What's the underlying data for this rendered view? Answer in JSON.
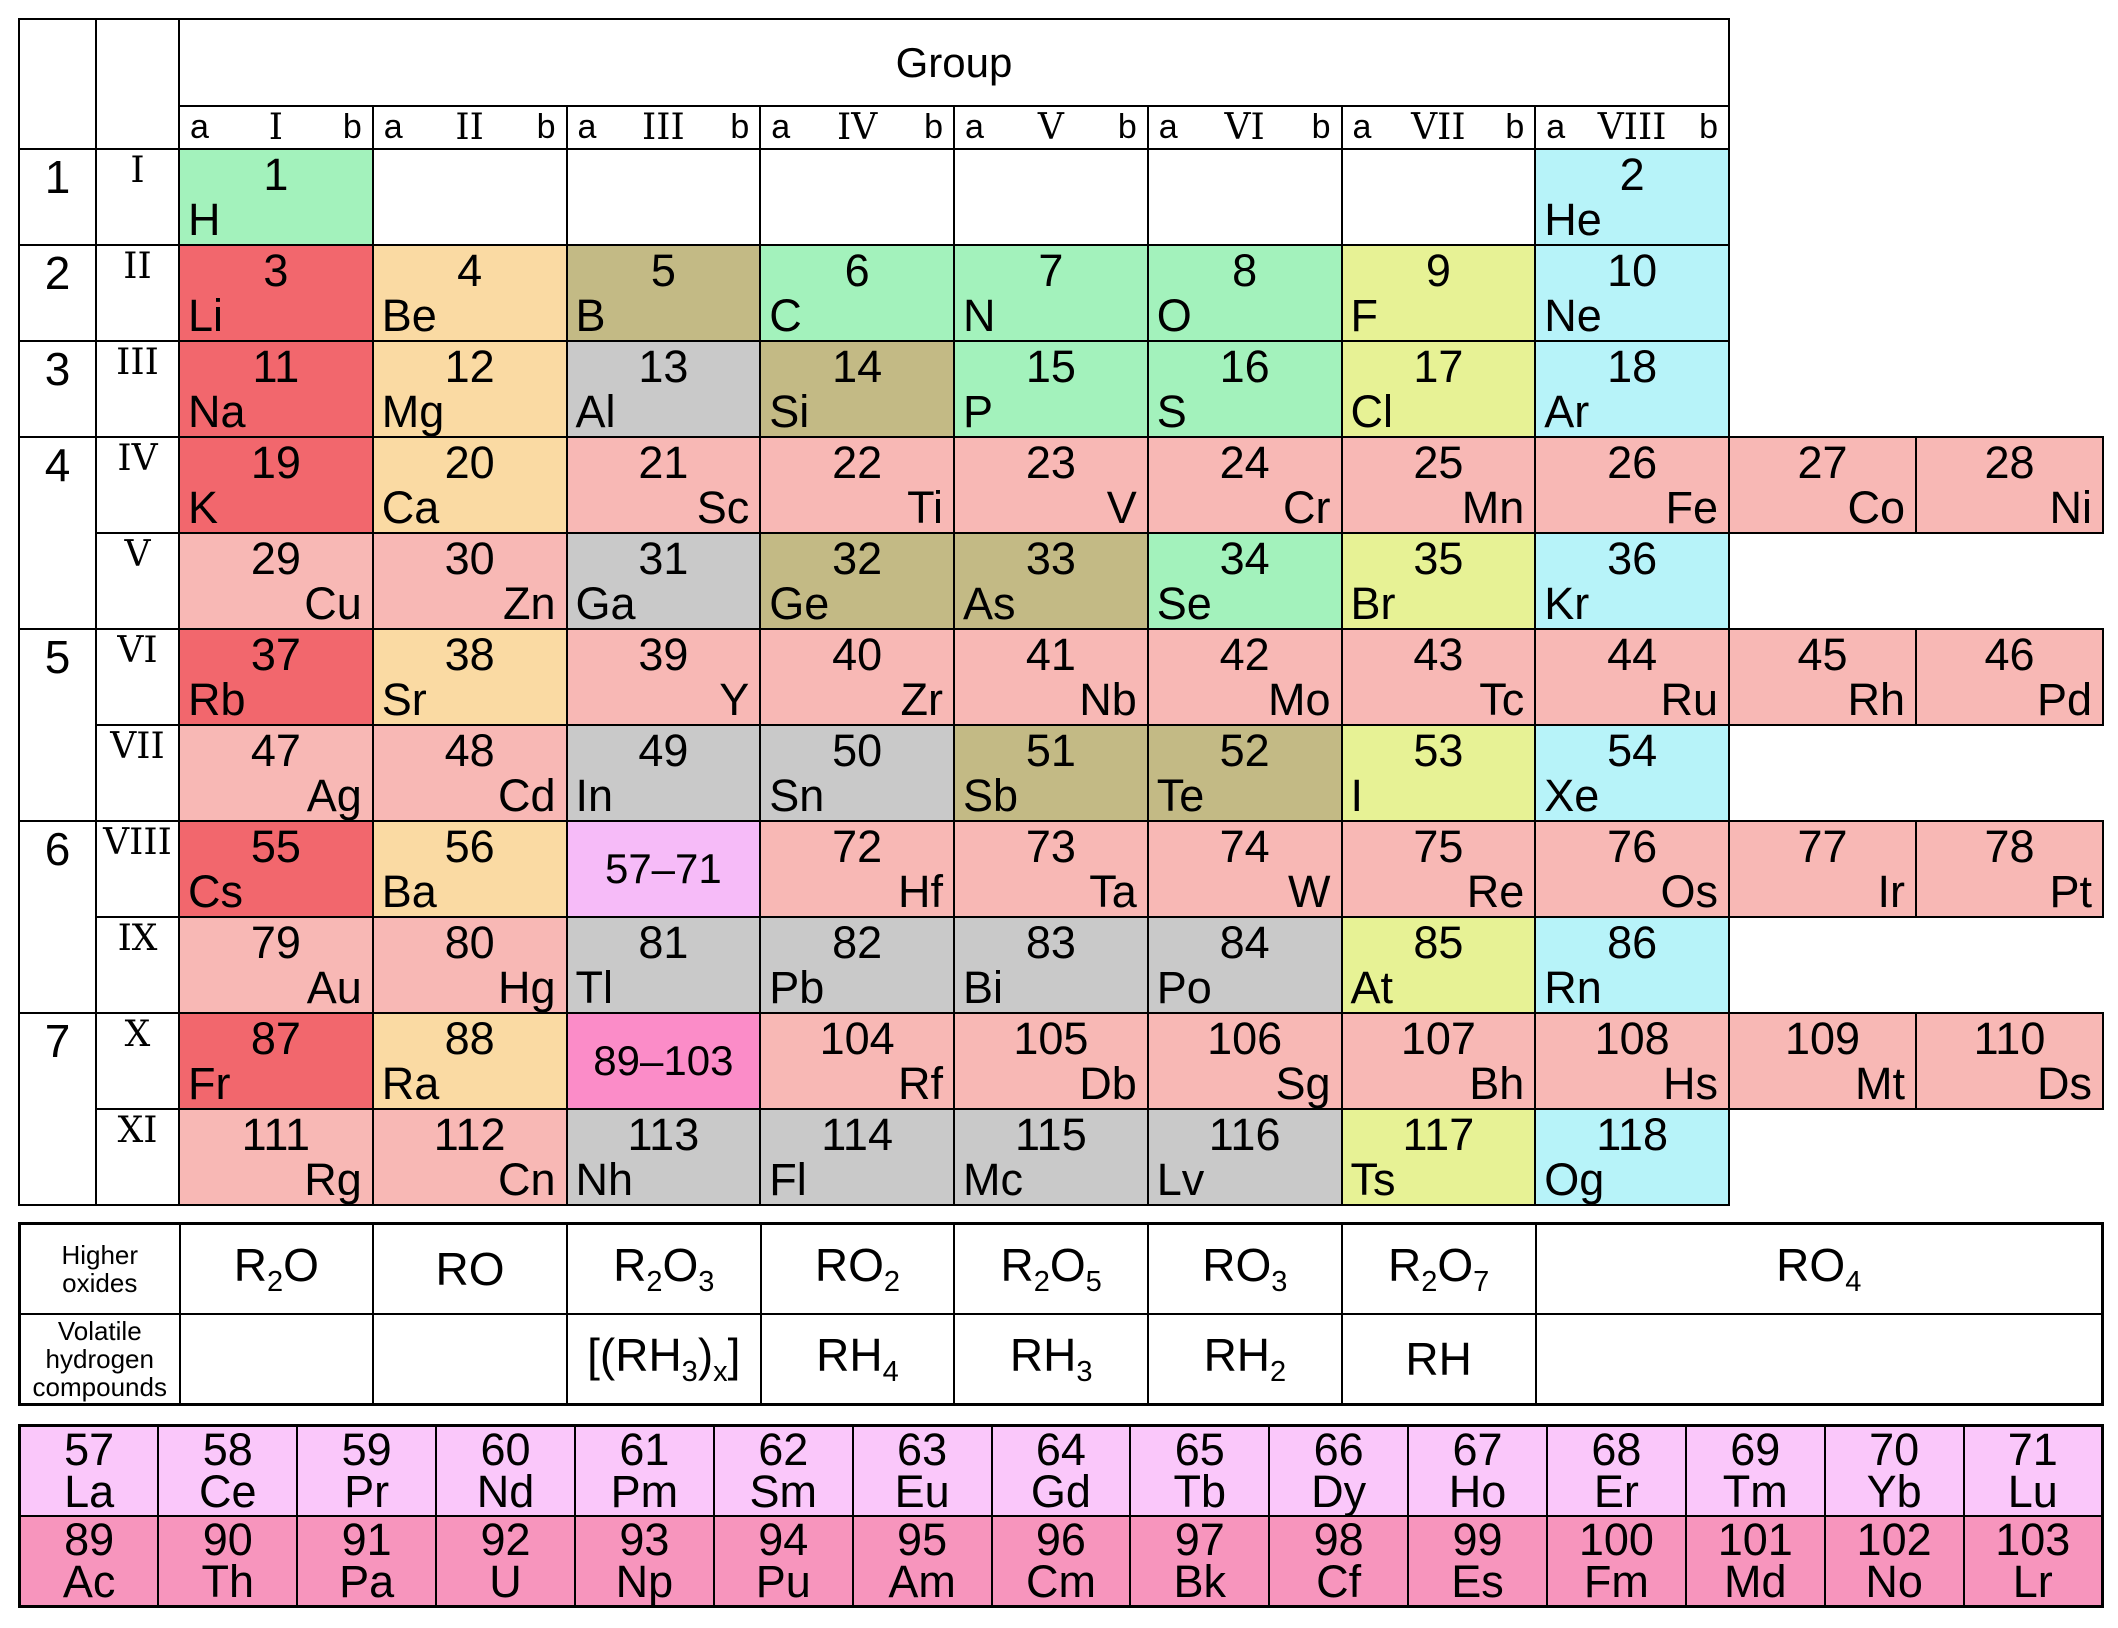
{
  "header": {
    "group_title": "Group",
    "sub_left": "a",
    "sub_right": "b",
    "groups": [
      "I",
      "II",
      "III",
      "IV",
      "V",
      "VI",
      "VII",
      "VIII"
    ]
  },
  "periods": [
    {
      "number": "1",
      "rows": [
        "I"
      ]
    },
    {
      "number": "2",
      "rows": [
        "II"
      ]
    },
    {
      "number": "3",
      "rows": [
        "III"
      ]
    },
    {
      "number": "4",
      "rows": [
        "IV",
        "V"
      ]
    },
    {
      "number": "5",
      "rows": [
        "VI",
        "VII"
      ]
    },
    {
      "number": "6",
      "rows": [
        "VIII",
        "IX"
      ]
    },
    {
      "number": "7",
      "rows": [
        "X",
        "XI"
      ]
    }
  ],
  "colors": {
    "alkali": "#F2676D",
    "alkaline": "#FADAA3",
    "transition": "#F8B8B5",
    "post_transition": "#C9C9C9",
    "metalloid": "#C3BA85",
    "nonmetal": "#A3F2BC",
    "halogen": "#E7F295",
    "noble": "#B7F3F9",
    "lanthanide_ref": "#F6BBF8",
    "actinide_ref": "#FB8CC8",
    "lanthanide_row": "#FAC7FA",
    "actinide_row": "#F795BD",
    "border": "#000000",
    "background": "#FFFFFF"
  },
  "cells": [
    {
      "r": 0,
      "g": 0,
      "number": "1",
      "symbol": "H",
      "align": "left",
      "cat": "nonmetal"
    },
    {
      "r": 0,
      "g": 7,
      "number": "2",
      "symbol": "He",
      "align": "left",
      "cat": "noble"
    },
    {
      "r": 1,
      "g": 0,
      "number": "3",
      "symbol": "Li",
      "align": "left",
      "cat": "alkali"
    },
    {
      "r": 1,
      "g": 1,
      "number": "4",
      "symbol": "Be",
      "align": "left",
      "cat": "alkaline"
    },
    {
      "r": 1,
      "g": 2,
      "number": "5",
      "symbol": "B",
      "align": "left",
      "cat": "metalloid"
    },
    {
      "r": 1,
      "g": 3,
      "number": "6",
      "symbol": "C",
      "align": "left",
      "cat": "nonmetal"
    },
    {
      "r": 1,
      "g": 4,
      "number": "7",
      "symbol": "N",
      "align": "left",
      "cat": "nonmetal"
    },
    {
      "r": 1,
      "g": 5,
      "number": "8",
      "symbol": "O",
      "align": "left",
      "cat": "nonmetal"
    },
    {
      "r": 1,
      "g": 6,
      "number": "9",
      "symbol": "F",
      "align": "left",
      "cat": "halogen"
    },
    {
      "r": 1,
      "g": 7,
      "number": "10",
      "symbol": "Ne",
      "align": "left",
      "cat": "noble"
    },
    {
      "r": 2,
      "g": 0,
      "number": "11",
      "symbol": "Na",
      "align": "left",
      "cat": "alkali"
    },
    {
      "r": 2,
      "g": 1,
      "number": "12",
      "symbol": "Mg",
      "align": "left",
      "cat": "alkaline"
    },
    {
      "r": 2,
      "g": 2,
      "number": "13",
      "symbol": "Al",
      "align": "left",
      "cat": "post_transition"
    },
    {
      "r": 2,
      "g": 3,
      "number": "14",
      "symbol": "Si",
      "align": "left",
      "cat": "metalloid"
    },
    {
      "r": 2,
      "g": 4,
      "number": "15",
      "symbol": "P",
      "align": "left",
      "cat": "nonmetal"
    },
    {
      "r": 2,
      "g": 5,
      "number": "16",
      "symbol": "S",
      "align": "left",
      "cat": "nonmetal"
    },
    {
      "r": 2,
      "g": 6,
      "number": "17",
      "symbol": "Cl",
      "align": "left",
      "cat": "halogen"
    },
    {
      "r": 2,
      "g": 7,
      "number": "18",
      "symbol": "Ar",
      "align": "left",
      "cat": "noble"
    },
    {
      "r": 3,
      "g": 0,
      "number": "19",
      "symbol": "K",
      "align": "left",
      "cat": "alkali"
    },
    {
      "r": 3,
      "g": 1,
      "number": "20",
      "symbol": "Ca",
      "align": "left",
      "cat": "alkaline"
    },
    {
      "r": 3,
      "g": 2,
      "number": "21",
      "symbol": "Sc",
      "align": "right",
      "cat": "transition"
    },
    {
      "r": 3,
      "g": 3,
      "number": "22",
      "symbol": "Ti",
      "align": "right",
      "cat": "transition"
    },
    {
      "r": 3,
      "g": 4,
      "number": "23",
      "symbol": "V",
      "align": "right",
      "cat": "transition"
    },
    {
      "r": 3,
      "g": 5,
      "number": "24",
      "symbol": "Cr",
      "align": "right",
      "cat": "transition"
    },
    {
      "r": 3,
      "g": 6,
      "number": "25",
      "symbol": "Mn",
      "align": "right",
      "cat": "transition"
    },
    {
      "r": 3,
      "g": 7,
      "number": "26",
      "symbol": "Fe",
      "align": "right",
      "cat": "transition"
    },
    {
      "r": 3,
      "g": 8,
      "number": "27",
      "symbol": "Co",
      "align": "right",
      "cat": "transition"
    },
    {
      "r": 3,
      "g": 9,
      "number": "28",
      "symbol": "Ni",
      "align": "right",
      "cat": "transition"
    },
    {
      "r": 4,
      "g": 0,
      "number": "29",
      "symbol": "Cu",
      "align": "right",
      "cat": "transition"
    },
    {
      "r": 4,
      "g": 1,
      "number": "30",
      "symbol": "Zn",
      "align": "right",
      "cat": "transition"
    },
    {
      "r": 4,
      "g": 2,
      "number": "31",
      "symbol": "Ga",
      "align": "left",
      "cat": "post_transition"
    },
    {
      "r": 4,
      "g": 3,
      "number": "32",
      "symbol": "Ge",
      "align": "left",
      "cat": "metalloid"
    },
    {
      "r": 4,
      "g": 4,
      "number": "33",
      "symbol": "As",
      "align": "left",
      "cat": "metalloid"
    },
    {
      "r": 4,
      "g": 5,
      "number": "34",
      "symbol": "Se",
      "align": "left",
      "cat": "nonmetal"
    },
    {
      "r": 4,
      "g": 6,
      "number": "35",
      "symbol": "Br",
      "align": "left",
      "cat": "halogen"
    },
    {
      "r": 4,
      "g": 7,
      "number": "36",
      "symbol": "Kr",
      "align": "left",
      "cat": "noble"
    },
    {
      "r": 5,
      "g": 0,
      "number": "37",
      "symbol": "Rb",
      "align": "left",
      "cat": "alkali"
    },
    {
      "r": 5,
      "g": 1,
      "number": "38",
      "symbol": "Sr",
      "align": "left",
      "cat": "alkaline"
    },
    {
      "r": 5,
      "g": 2,
      "number": "39",
      "symbol": "Y",
      "align": "right",
      "cat": "transition"
    },
    {
      "r": 5,
      "g": 3,
      "number": "40",
      "symbol": "Zr",
      "align": "right",
      "cat": "transition"
    },
    {
      "r": 5,
      "g": 4,
      "number": "41",
      "symbol": "Nb",
      "align": "right",
      "cat": "transition"
    },
    {
      "r": 5,
      "g": 5,
      "number": "42",
      "symbol": "Mo",
      "align": "right",
      "cat": "transition"
    },
    {
      "r": 5,
      "g": 6,
      "number": "43",
      "symbol": "Tc",
      "align": "right",
      "cat": "transition"
    },
    {
      "r": 5,
      "g": 7,
      "number": "44",
      "symbol": "Ru",
      "align": "right",
      "cat": "transition"
    },
    {
      "r": 5,
      "g": 8,
      "number": "45",
      "symbol": "Rh",
      "align": "right",
      "cat": "transition"
    },
    {
      "r": 5,
      "g": 9,
      "number": "46",
      "symbol": "Pd",
      "align": "right",
      "cat": "transition"
    },
    {
      "r": 6,
      "g": 0,
      "number": "47",
      "symbol": "Ag",
      "align": "right",
      "cat": "transition"
    },
    {
      "r": 6,
      "g": 1,
      "number": "48",
      "symbol": "Cd",
      "align": "right",
      "cat": "transition"
    },
    {
      "r": 6,
      "g": 2,
      "number": "49",
      "symbol": "In",
      "align": "left",
      "cat": "post_transition"
    },
    {
      "r": 6,
      "g": 3,
      "number": "50",
      "symbol": "Sn",
      "align": "left",
      "cat": "post_transition"
    },
    {
      "r": 6,
      "g": 4,
      "number": "51",
      "symbol": "Sb",
      "align": "left",
      "cat": "metalloid"
    },
    {
      "r": 6,
      "g": 5,
      "number": "52",
      "symbol": "Te",
      "align": "left",
      "cat": "metalloid"
    },
    {
      "r": 6,
      "g": 6,
      "number": "53",
      "symbol": "I",
      "align": "left",
      "cat": "halogen"
    },
    {
      "r": 6,
      "g": 7,
      "number": "54",
      "symbol": "Xe",
      "align": "left",
      "cat": "noble"
    },
    {
      "r": 7,
      "g": 0,
      "number": "55",
      "symbol": "Cs",
      "align": "left",
      "cat": "alkali"
    },
    {
      "r": 7,
      "g": 1,
      "number": "56",
      "symbol": "Ba",
      "align": "left",
      "cat": "alkaline"
    },
    {
      "r": 7,
      "g": 2,
      "label": "57–71",
      "cat": "lanthanide_ref",
      "name": "lanthanide-range-cell"
    },
    {
      "r": 7,
      "g": 3,
      "number": "72",
      "symbol": "Hf",
      "align": "right",
      "cat": "transition"
    },
    {
      "r": 7,
      "g": 4,
      "number": "73",
      "symbol": "Ta",
      "align": "right",
      "cat": "transition"
    },
    {
      "r": 7,
      "g": 5,
      "number": "74",
      "symbol": "W",
      "align": "right",
      "cat": "transition"
    },
    {
      "r": 7,
      "g": 6,
      "number": "75",
      "symbol": "Re",
      "align": "right",
      "cat": "transition"
    },
    {
      "r": 7,
      "g": 7,
      "number": "76",
      "symbol": "Os",
      "align": "right",
      "cat": "transition"
    },
    {
      "r": 7,
      "g": 8,
      "number": "77",
      "symbol": "Ir",
      "align": "right",
      "cat": "transition"
    },
    {
      "r": 7,
      "g": 9,
      "number": "78",
      "symbol": "Pt",
      "align": "right",
      "cat": "transition"
    },
    {
      "r": 8,
      "g": 0,
      "number": "79",
      "symbol": "Au",
      "align": "right",
      "cat": "transition"
    },
    {
      "r": 8,
      "g": 1,
      "number": "80",
      "symbol": "Hg",
      "align": "right",
      "cat": "transition"
    },
    {
      "r": 8,
      "g": 2,
      "number": "81",
      "symbol": "Tl",
      "align": "left",
      "cat": "post_transition"
    },
    {
      "r": 8,
      "g": 3,
      "number": "82",
      "symbol": "Pb",
      "align": "left",
      "cat": "post_transition"
    },
    {
      "r": 8,
      "g": 4,
      "number": "83",
      "symbol": "Bi",
      "align": "left",
      "cat": "post_transition"
    },
    {
      "r": 8,
      "g": 5,
      "number": "84",
      "symbol": "Po",
      "align": "left",
      "cat": "post_transition"
    },
    {
      "r": 8,
      "g": 6,
      "number": "85",
      "symbol": "At",
      "align": "left",
      "cat": "halogen"
    },
    {
      "r": 8,
      "g": 7,
      "number": "86",
      "symbol": "Rn",
      "align": "left",
      "cat": "noble"
    },
    {
      "r": 9,
      "g": 0,
      "number": "87",
      "symbol": "Fr",
      "align": "left",
      "cat": "alkali"
    },
    {
      "r": 9,
      "g": 1,
      "number": "88",
      "symbol": "Ra",
      "align": "left",
      "cat": "alkaline"
    },
    {
      "r": 9,
      "g": 2,
      "label": "89–103",
      "cat": "actinide_ref",
      "name": "actinide-range-cell"
    },
    {
      "r": 9,
      "g": 3,
      "number": "104",
      "symbol": "Rf",
      "align": "right",
      "cat": "transition"
    },
    {
      "r": 9,
      "g": 4,
      "number": "105",
      "symbol": "Db",
      "align": "right",
      "cat": "transition"
    },
    {
      "r": 9,
      "g": 5,
      "number": "106",
      "symbol": "Sg",
      "align": "right",
      "cat": "transition"
    },
    {
      "r": 9,
      "g": 6,
      "number": "107",
      "symbol": "Bh",
      "align": "right",
      "cat": "transition"
    },
    {
      "r": 9,
      "g": 7,
      "number": "108",
      "symbol": "Hs",
      "align": "right",
      "cat": "transition"
    },
    {
      "r": 9,
      "g": 8,
      "number": "109",
      "symbol": "Mt",
      "align": "right",
      "cat": "transition"
    },
    {
      "r": 9,
      "g": 9,
      "number": "110",
      "symbol": "Ds",
      "align": "right",
      "cat": "transition"
    },
    {
      "r": 10,
      "g": 0,
      "number": "111",
      "symbol": "Rg",
      "align": "right",
      "cat": "transition"
    },
    {
      "r": 10,
      "g": 1,
      "number": "112",
      "symbol": "Cn",
      "align": "right",
      "cat": "transition"
    },
    {
      "r": 10,
      "g": 2,
      "number": "113",
      "symbol": "Nh",
      "align": "left",
      "cat": "post_transition"
    },
    {
      "r": 10,
      "g": 3,
      "number": "114",
      "symbol": "Fl",
      "align": "left",
      "cat": "post_transition"
    },
    {
      "r": 10,
      "g": 4,
      "number": "115",
      "symbol": "Mc",
      "align": "left",
      "cat": "post_transition"
    },
    {
      "r": 10,
      "g": 5,
      "number": "116",
      "symbol": "Lv",
      "align": "left",
      "cat": "post_transition"
    },
    {
      "r": 10,
      "g": 6,
      "number": "117",
      "symbol": "Ts",
      "align": "left",
      "cat": "halogen"
    },
    {
      "r": 10,
      "g": 7,
      "number": "118",
      "symbol": "Og",
      "align": "left",
      "cat": "noble"
    }
  ],
  "oxides": {
    "row1_label": "Higher oxides",
    "row2_label": "Volatile hydrogen compounds",
    "higher_oxides": [
      "R_2O",
      "RO",
      "R_2O_3",
      "RO_2",
      "R_2O_5",
      "RO_3",
      "R_2O_7",
      "RO_4"
    ],
    "hydrogen_compounds": [
      "",
      "",
      "[(RH_3)_x]",
      "RH_4",
      "RH_3",
      "RH_2",
      "RH",
      ""
    ]
  },
  "lanthanides": [
    {
      "number": "57",
      "symbol": "La"
    },
    {
      "number": "58",
      "symbol": "Ce"
    },
    {
      "number": "59",
      "symbol": "Pr"
    },
    {
      "number": "60",
      "symbol": "Nd"
    },
    {
      "number": "61",
      "symbol": "Pm"
    },
    {
      "number": "62",
      "symbol": "Sm"
    },
    {
      "number": "63",
      "symbol": "Eu"
    },
    {
      "number": "64",
      "symbol": "Gd"
    },
    {
      "number": "65",
      "symbol": "Tb"
    },
    {
      "number": "66",
      "symbol": "Dy"
    },
    {
      "number": "67",
      "symbol": "Ho"
    },
    {
      "number": "68",
      "symbol": "Er"
    },
    {
      "number": "69",
      "symbol": "Tm"
    },
    {
      "number": "70",
      "symbol": "Yb"
    },
    {
      "number": "71",
      "symbol": "Lu"
    }
  ],
  "actinides": [
    {
      "number": "89",
      "symbol": "Ac"
    },
    {
      "number": "90",
      "symbol": "Th"
    },
    {
      "number": "91",
      "symbol": "Pa"
    },
    {
      "number": "92",
      "symbol": "U"
    },
    {
      "number": "93",
      "symbol": "Np"
    },
    {
      "number": "94",
      "symbol": "Pu"
    },
    {
      "number": "95",
      "symbol": "Am"
    },
    {
      "number": "96",
      "symbol": "Cm"
    },
    {
      "number": "97",
      "symbol": "Bk"
    },
    {
      "number": "98",
      "symbol": "Cf"
    },
    {
      "number": "99",
      "symbol": "Es"
    },
    {
      "number": "100",
      "symbol": "Fm"
    },
    {
      "number": "101",
      "symbol": "Md"
    },
    {
      "number": "102",
      "symbol": "No"
    },
    {
      "number": "103",
      "symbol": "Lr"
    }
  ]
}
